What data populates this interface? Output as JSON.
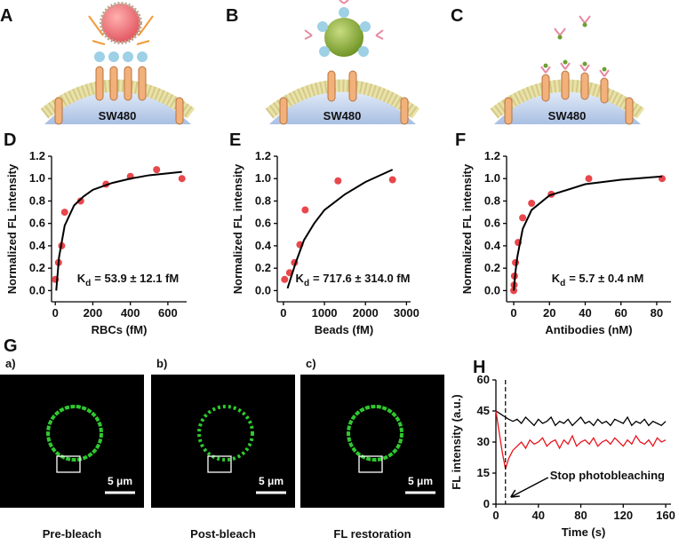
{
  "illustrations": [
    {
      "label": "A",
      "cell": "SW480"
    },
    {
      "label": "B",
      "cell": "SW480"
    },
    {
      "label": "C",
      "cell": "SW480"
    }
  ],
  "micrographs": {
    "label": "G",
    "images": [
      {
        "label": "a)",
        "scale": "5 μm",
        "caption": "Pre-bleach"
      },
      {
        "label": "b)",
        "scale": "5 μm",
        "caption": "Post-bleach"
      },
      {
        "label": "c)",
        "scale": "5 μm",
        "caption": "FL restoration"
      }
    ]
  },
  "chart_data": [
    {
      "type": "scatter",
      "panel": "D",
      "xlabel": "RBCs (fM)",
      "ylabel": "Normalized FL intensity",
      "xlim": [
        -20,
        700
      ],
      "xticks": [
        0,
        200,
        400,
        600
      ],
      "ylim": [
        -0.1,
        1.2
      ],
      "yticks": [
        {
          "value": 0,
          "label": "0.0"
        },
        0.2,
        0.4,
        0.6,
        0.8,
        {
          "value": 1,
          "label": "1.0"
        },
        1.2
      ],
      "annotation": {
        "symbol": "K",
        "subscript": "d",
        "text": "=  53.9 ± 12.1 fM"
      },
      "series": [
        {
          "mode": "markers",
          "color": "#e8474c",
          "x": [
            0,
            17,
            34,
            50,
            135,
            270,
            400,
            540,
            675
          ],
          "values": [
            0.1,
            0.25,
            0.4,
            0.7,
            0.8,
            0.95,
            1.02,
            1.08,
            1.0
          ]
        },
        {
          "mode": "line",
          "color": "#000000",
          "x": [
            5,
            20,
            50,
            100,
            150,
            200,
            300,
            400,
            500,
            675
          ],
          "values": [
            0.0,
            0.3,
            0.58,
            0.76,
            0.84,
            0.9,
            0.96,
            1.0,
            1.03,
            1.06
          ]
        }
      ]
    },
    {
      "type": "scatter",
      "panel": "E",
      "xlabel": "Beads (fM)",
      "ylabel": "Normalized FL intensity",
      "xlim": [
        -150,
        3100
      ],
      "xticks": [
        0,
        1000,
        2000,
        3000
      ],
      "ylim": [
        -0.1,
        1.2
      ],
      "yticks": [
        {
          "value": 0,
          "label": "0.0"
        },
        0.2,
        0.4,
        0.6,
        0.8,
        {
          "value": 1,
          "label": "1.0"
        },
        1.2
      ],
      "annotation": {
        "symbol": "K",
        "subscript": "d",
        "text": "=  717.6 ± 314.0 fM"
      },
      "series": [
        {
          "mode": "markers",
          "color": "#e8474c",
          "x": [
            30,
            150,
            270,
            400,
            530,
            1330,
            2660
          ],
          "values": [
            0.1,
            0.16,
            0.25,
            0.41,
            0.72,
            0.98,
            0.99
          ]
        },
        {
          "mode": "line",
          "color": "#000000",
          "x": [
            100,
            300,
            500,
            750,
            1000,
            1500,
            2000,
            2660
          ],
          "values": [
            0.02,
            0.25,
            0.45,
            0.6,
            0.72,
            0.86,
            0.97,
            1.08
          ]
        }
      ]
    },
    {
      "type": "scatter",
      "panel": "F",
      "xlabel": "Antibodies (nM)",
      "ylabel": "Normalized FL intensity",
      "xlim": [
        -4,
        88
      ],
      "xticks": [
        0,
        20,
        40,
        60,
        80
      ],
      "ylim": [
        -0.1,
        1.2
      ],
      "yticks": [
        {
          "value": 0,
          "label": "0.0"
        },
        0.2,
        0.4,
        0.6,
        0.8,
        {
          "value": 1,
          "label": "1.0"
        },
        1.2
      ],
      "annotation": {
        "symbol": "K",
        "subscript": "d",
        "text": "=  5.7 ± 0.4 nM"
      },
      "series": [
        {
          "mode": "markers",
          "color": "#e8474c",
          "x": [
            0,
            0.2,
            0.4,
            1,
            2.5,
            5,
            10,
            21,
            42,
            83
          ],
          "values": [
            0.0,
            0.05,
            0.13,
            0.25,
            0.43,
            0.65,
            0.78,
            0.86,
            1.0,
            1.0
          ]
        },
        {
          "mode": "line",
          "color": "#000000",
          "x": [
            0,
            1,
            2,
            5,
            10,
            20,
            40,
            60,
            83
          ],
          "values": [
            0.0,
            0.17,
            0.3,
            0.55,
            0.72,
            0.85,
            0.95,
            0.99,
            1.02
          ]
        }
      ]
    },
    {
      "type": "line",
      "panel": "H",
      "xlabel": "Time (s)",
      "ylabel": "FL intensity (a.u.)",
      "xlim": [
        0,
        165
      ],
      "xticks": [
        0,
        40,
        80,
        120,
        160
      ],
      "ylim": [
        0,
        60
      ],
      "yticks": [
        0,
        15,
        30,
        45,
        60
      ],
      "vline": 9,
      "annotation": "Stop photobleaching",
      "x": [
        0,
        3,
        6,
        9,
        12,
        16,
        20,
        24,
        28,
        32,
        36,
        40,
        44,
        48,
        52,
        56,
        60,
        64,
        68,
        72,
        76,
        80,
        84,
        88,
        92,
        96,
        100,
        104,
        108,
        112,
        116,
        120,
        124,
        128,
        132,
        136,
        140,
        144,
        148,
        152,
        156,
        160
      ],
      "series": [
        {
          "color": "#000000",
          "values": [
            45,
            44,
            43,
            42,
            41,
            40,
            41,
            39,
            42,
            40,
            38,
            41,
            39,
            40,
            42,
            38,
            40,
            39,
            41,
            38,
            40,
            42,
            39,
            40,
            38,
            41,
            39,
            40,
            38,
            41,
            40,
            39,
            42,
            38,
            40,
            39,
            41,
            38,
            40,
            39,
            38,
            40
          ]
        },
        {
          "color": "#e8141c",
          "values": [
            45,
            35,
            25,
            17,
            22,
            26,
            28,
            30,
            27,
            31,
            29,
            30,
            32,
            28,
            30,
            31,
            27,
            31,
            29,
            33,
            28,
            30,
            31,
            29,
            32,
            28,
            30,
            31,
            29,
            32,
            30,
            28,
            31,
            29,
            33,
            30,
            29,
            31,
            28,
            32,
            30,
            31
          ]
        }
      ]
    }
  ]
}
